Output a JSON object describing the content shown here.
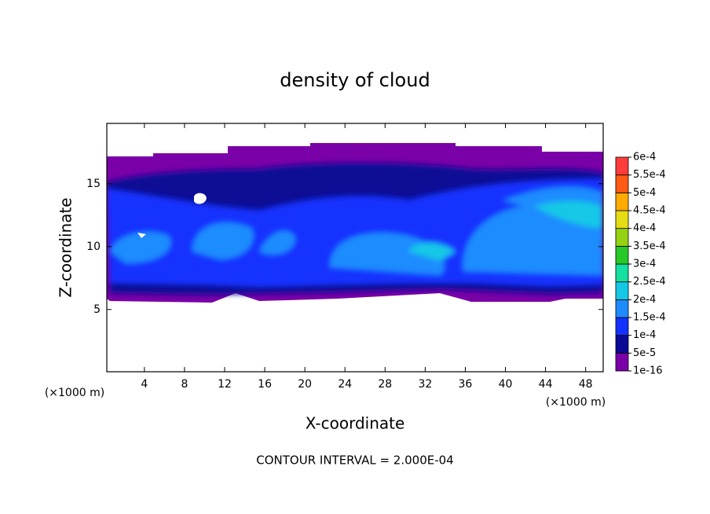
{
  "chart_data": {
    "type": "contour",
    "title": "density of cloud",
    "xlabel": "X-coordinate",
    "ylabel": "Z-coordinate",
    "x_unit": "(×1000 m)",
    "y_unit": "(×1000 m)",
    "footer": "CONTOUR INTERVAL = 2.000E-04",
    "xlim": [
      0.25,
      49.75
    ],
    "ylim": [
      0.05,
      19.8
    ],
    "xticks": [
      4,
      8,
      12,
      16,
      20,
      24,
      28,
      32,
      36,
      40,
      44,
      48
    ],
    "yticks": [
      5,
      10,
      15
    ],
    "colorbar": {
      "levels": [
        {
          "value": 1e-16,
          "label": "1e-16"
        },
        {
          "value": 5e-05,
          "label": "5e-5"
        },
        {
          "value": 0.0001,
          "label": "1e-4"
        },
        {
          "value": 0.00015,
          "label": "1.5e-4"
        },
        {
          "value": 0.0002,
          "label": "2e-4"
        },
        {
          "value": 0.00025,
          "label": "2.5e-4"
        },
        {
          "value": 0.0003,
          "label": "3e-4"
        },
        {
          "value": 0.00035,
          "label": "3.5e-4"
        },
        {
          "value": 0.0004,
          "label": "4e-4"
        },
        {
          "value": 0.00045,
          "label": "4.5e-4"
        },
        {
          "value": 0.0005,
          "label": "5e-4"
        },
        {
          "value": 0.00055,
          "label": "5.5e-4"
        },
        {
          "value": 0.0006,
          "label": "6e-4"
        }
      ],
      "colors": [
        "#7a00a8",
        "#0a0a96",
        "#1432ff",
        "#1e8cff",
        "#14c8e6",
        "#14e0a0",
        "#28c828",
        "#96d214",
        "#e6dc14",
        "#ffaa00",
        "#ff5a14",
        "#ff3c3c",
        "#ff9090"
      ]
    }
  }
}
